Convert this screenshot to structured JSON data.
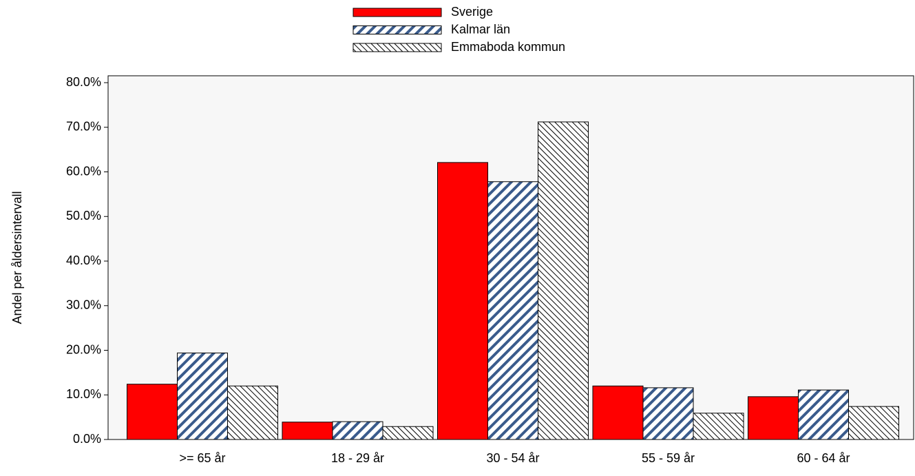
{
  "chart_data": {
    "type": "bar",
    "ylabel": "Andel per åldersintervall",
    "categories": [
      ">= 65 år",
      "18 - 29 år",
      "30 - 54 år",
      "55 - 59 år",
      "60 - 64 år"
    ],
    "series": [
      {
        "name": "Sverige",
        "color": "#ff0000",
        "values": [
          12.4,
          3.9,
          62.1,
          12.0,
          9.6
        ]
      },
      {
        "name": "Kalmar län",
        "color": "#3a5b8c",
        "values": [
          19.4,
          4.0,
          57.8,
          11.6,
          11.1
        ]
      },
      {
        "name": "Emmaboda kommun",
        "color": "#000000",
        "values": [
          12.0,
          2.9,
          71.2,
          5.9,
          7.4
        ]
      }
    ],
    "ylim": [
      0,
      80
    ],
    "yticks": [
      {
        "value": 0,
        "label": "0.0%"
      },
      {
        "value": 10,
        "label": "10.0%"
      },
      {
        "value": 20,
        "label": "20.0%"
      },
      {
        "value": 30,
        "label": "30.0%"
      },
      {
        "value": 40,
        "label": "40.0%"
      },
      {
        "value": 50,
        "label": "50.0%"
      },
      {
        "value": 60,
        "label": "60.0%"
      },
      {
        "value": 70,
        "label": "70.0%"
      },
      {
        "value": 80,
        "label": "80.0%"
      }
    ],
    "legend": "top"
  }
}
